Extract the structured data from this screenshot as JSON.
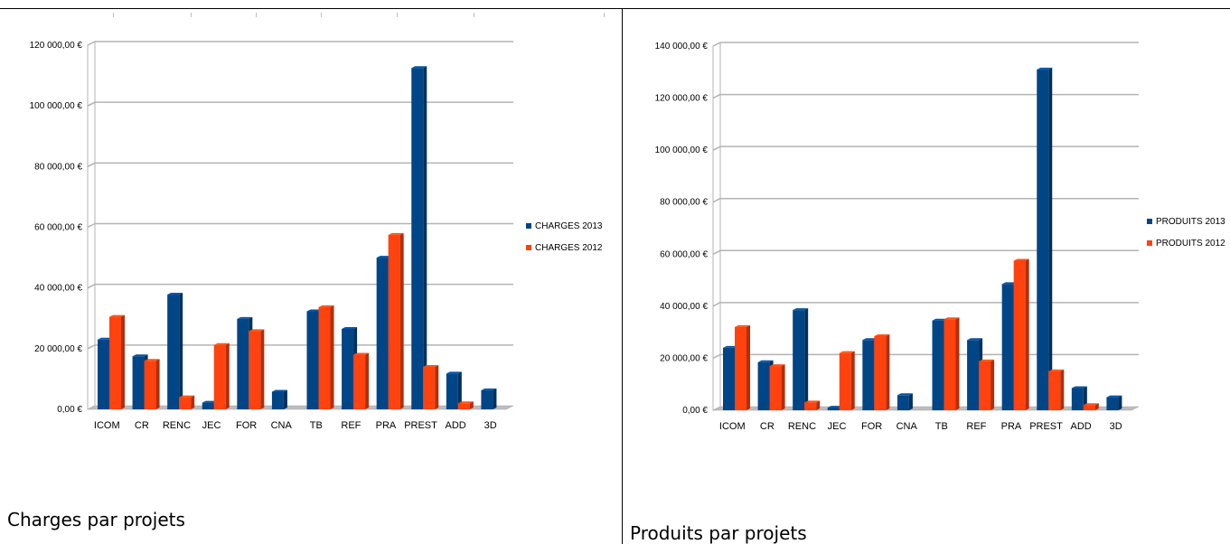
{
  "chart_data": [
    {
      "type": "bar",
      "title": "",
      "xlabel": "",
      "ylabel": "",
      "categories": [
        "ICOM",
        "CR",
        "RENC",
        "JEC",
        "FOR",
        "CNA",
        "TB",
        "REF",
        "PRA",
        "PREST",
        "ADD",
        "3D"
      ],
      "series": [
        {
          "name": "CHARGES 2013",
          "color": "#004586",
          "values": [
            23000,
            17500,
            37800,
            2200,
            29800,
            5800,
            32300,
            26500,
            50000,
            112500,
            11800,
            6300
          ]
        },
        {
          "name": "CHARGES 2012",
          "color": "#ff420e",
          "values": [
            30500,
            16000,
            4000,
            21200,
            25800,
            0,
            33700,
            18000,
            57500,
            14000,
            2000,
            0
          ]
        }
      ],
      "ylim": [
        0,
        120000
      ],
      "yticks": [
        "0,00 €",
        "20 000,00 €",
        "40 000,00 €",
        "60 000,00 €",
        "80 000,00 €",
        "100 000,00 €",
        "120 000,00 €"
      ],
      "grid": true,
      "legend": "right",
      "caption": "Charges par projets"
    },
    {
      "type": "bar",
      "title": "",
      "xlabel": "",
      "ylabel": "",
      "categories": [
        "ICOM",
        "CR",
        "RENC",
        "JEC",
        "FOR",
        "CNA",
        "TB",
        "REF",
        "PRA",
        "PREST",
        "ADD",
        "3D"
      ],
      "series": [
        {
          "name": "PRODUITS 2013",
          "color": "#004586",
          "values": [
            24000,
            18500,
            38500,
            1000,
            27000,
            5800,
            34500,
            27000,
            48500,
            131000,
            8500,
            5000
          ]
        },
        {
          "name": "PRODUITS 2012",
          "color": "#ff420e",
          "values": [
            32000,
            17000,
            3000,
            22000,
            28500,
            0,
            35000,
            18800,
            57500,
            15000,
            2000,
            0
          ]
        }
      ],
      "ylim": [
        0,
        140000
      ],
      "yticks": [
        "0,00 €",
        "20 000,00 €",
        "40 000,00 €",
        "60 000,00 €",
        "80 000,00 €",
        "100 000,00 €",
        "120 000,00 €",
        "140 000,00 €"
      ],
      "grid": true,
      "legend": "right",
      "caption": "Produits par projets"
    }
  ]
}
